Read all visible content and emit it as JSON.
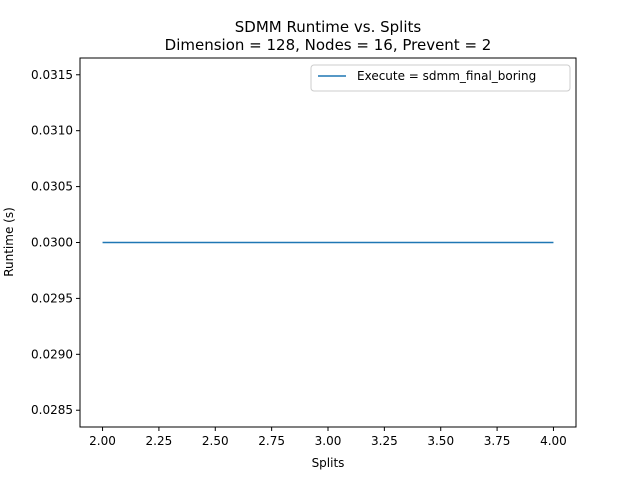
{
  "chart_data": {
    "type": "line",
    "title": "SDMM Runtime vs. Splits",
    "subtitle": "Dimension = 128, Nodes = 16, Prevent = 2",
    "xlabel": "Splits",
    "ylabel": "Runtime (s)",
    "xlim": [
      1.9,
      4.1
    ],
    "ylim": [
      0.02835,
      0.03165
    ],
    "xticks": [
      "2.00",
      "2.25",
      "2.50",
      "2.75",
      "3.00",
      "3.25",
      "3.50",
      "3.75",
      "4.00"
    ],
    "yticks": [
      "0.0285",
      "0.0290",
      "0.0295",
      "0.0300",
      "0.0305",
      "0.0310",
      "0.0315"
    ],
    "grid": false,
    "legend_position": "top-right",
    "series": [
      {
        "name": "Execute = sdmm_final_boring",
        "color": "#1f77b4",
        "x": [
          2,
          3,
          4
        ],
        "y": [
          0.03,
          0.03,
          0.03
        ]
      }
    ]
  }
}
